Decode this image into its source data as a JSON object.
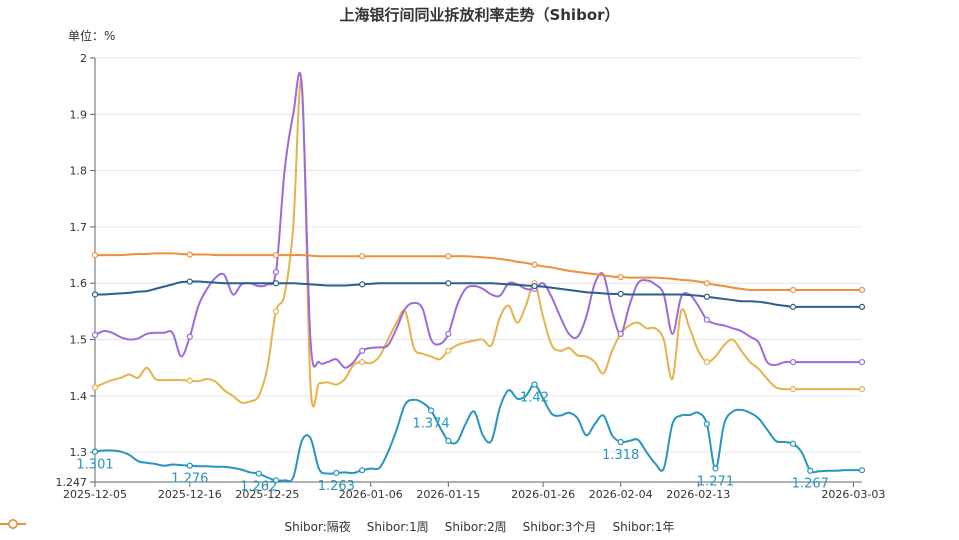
{
  "chart_data": {
    "type": "line",
    "title": "上海银行间同业拆放利率走势（Shibor）",
    "unit_label": "单位：%",
    "ylim": [
      1.247,
      2
    ],
    "y_ticks": [
      "2",
      "1.9",
      "1.8",
      "1.7",
      "1.6",
      "1.5",
      "1.4",
      "1.3",
      "1.247"
    ],
    "x_tick_labels": [
      "2025-12-05",
      "2025-12-16",
      "2025-12-25",
      "2026-01-06",
      "2026-01-15",
      "2026-01-26",
      "2026-02-04",
      "2026-02-13",
      "2026-03-03"
    ],
    "x": [
      "2025-12-05",
      "2025-12-06",
      "2025-12-07",
      "2025-12-08",
      "2025-12-09",
      "2025-12-10",
      "2025-12-11",
      "2025-12-12",
      "2025-12-13",
      "2025-12-14",
      "2025-12-15",
      "2025-12-16",
      "2025-12-17",
      "2025-12-18",
      "2025-12-19",
      "2025-12-20",
      "2025-12-21",
      "2025-12-22",
      "2025-12-23",
      "2025-12-24",
      "2025-12-25",
      "2025-12-26",
      "2025-12-27",
      "2025-12-28",
      "2025-12-29",
      "2025-12-30",
      "2025-12-31",
      "2026-01-01",
      "2026-01-02",
      "2026-01-03",
      "2026-01-04",
      "2026-01-05",
      "2026-01-06",
      "2026-01-07",
      "2026-01-08",
      "2026-01-09",
      "2026-01-10",
      "2026-01-11",
      "2026-01-12",
      "2026-01-13",
      "2026-01-14",
      "2026-01-15",
      "2026-01-16",
      "2026-01-17",
      "2026-01-18",
      "2026-01-19",
      "2026-01-20",
      "2026-01-21",
      "2026-01-22",
      "2026-01-23",
      "2026-01-24",
      "2026-01-25",
      "2026-01-26",
      "2026-01-27",
      "2026-01-28",
      "2026-01-29",
      "2026-01-30",
      "2026-01-31",
      "2026-02-01",
      "2026-02-02",
      "2026-02-03",
      "2026-02-04",
      "2026-02-05",
      "2026-02-06",
      "2026-02-07",
      "2026-02-08",
      "2026-02-09",
      "2026-02-10",
      "2026-02-11",
      "2026-02-12",
      "2026-02-13",
      "2026-02-14",
      "2026-02-15",
      "2026-02-16",
      "2026-02-17",
      "2026-02-18",
      "2026-02-19",
      "2026-02-20",
      "2026-02-21",
      "2026-02-22",
      "2026-02-23",
      "2026-02-24",
      "2026-02-25",
      "2026-02-26",
      "2026-02-27",
      "2026-02-28",
      "2026-03-01",
      "2026-03-02",
      "2026-03-03",
      "2026-03-04"
    ],
    "series": [
      {
        "name": "Shibor:隔夜",
        "color": "#2596be",
        "values": [
          1.301,
          1.303,
          1.303,
          1.301,
          1.295,
          1.284,
          1.281,
          1.279,
          1.276,
          1.278,
          1.277,
          1.276,
          1.275,
          1.275,
          1.274,
          1.274,
          1.272,
          1.269,
          1.264,
          1.262,
          1.255,
          1.25,
          1.25,
          1.255,
          1.32,
          1.325,
          1.27,
          1.262,
          1.263,
          1.264,
          1.263,
          1.268,
          1.271,
          1.272,
          1.3,
          1.34,
          1.385,
          1.393,
          1.388,
          1.374,
          1.345,
          1.32,
          1.318,
          1.35,
          1.372,
          1.33,
          1.32,
          1.38,
          1.41,
          1.395,
          1.4,
          1.42,
          1.395,
          1.368,
          1.365,
          1.37,
          1.36,
          1.33,
          1.35,
          1.365,
          1.33,
          1.318,
          1.32,
          1.322,
          1.3,
          1.28,
          1.271,
          1.35,
          1.365,
          1.366,
          1.37,
          1.35,
          1.271,
          1.35,
          1.372,
          1.375,
          1.37,
          1.36,
          1.34,
          1.32,
          1.318,
          1.315,
          1.3,
          1.267,
          1.266,
          1.267,
          1.267,
          1.268,
          1.268,
          1.268
        ]
      },
      {
        "name": "Shibor:1周",
        "color": "#e6b24b",
        "values": [
          1.415,
          1.422,
          1.428,
          1.432,
          1.438,
          1.432,
          1.45,
          1.43,
          1.428,
          1.428,
          1.428,
          1.427,
          1.426,
          1.43,
          1.425,
          1.41,
          1.4,
          1.388,
          1.39,
          1.4,
          1.45,
          1.55,
          1.58,
          1.7,
          1.955,
          1.42,
          1.422,
          1.424,
          1.42,
          1.43,
          1.455,
          1.46,
          1.458,
          1.47,
          1.5,
          1.53,
          1.55,
          1.485,
          1.475,
          1.47,
          1.465,
          1.48,
          1.49,
          1.495,
          1.498,
          1.5,
          1.49,
          1.54,
          1.56,
          1.53,
          1.56,
          1.6,
          1.54,
          1.49,
          1.48,
          1.485,
          1.472,
          1.47,
          1.46,
          1.44,
          1.48,
          1.51,
          1.525,
          1.53,
          1.52,
          1.52,
          1.5,
          1.43,
          1.55,
          1.52,
          1.48,
          1.46,
          1.47,
          1.49,
          1.5,
          1.48,
          1.46,
          1.448,
          1.43,
          1.415,
          1.412,
          1.412,
          1.412,
          1.412,
          1.412,
          1.412,
          1.412,
          1.412,
          1.412,
          1.412
        ]
      },
      {
        "name": "Shibor:2周",
        "color": "#9b6bdc",
        "values": [
          1.508,
          1.515,
          1.512,
          1.504,
          1.5,
          1.502,
          1.51,
          1.512,
          1.512,
          1.512,
          1.47,
          1.505,
          1.56,
          1.59,
          1.61,
          1.615,
          1.58,
          1.598,
          1.6,
          1.595,
          1.598,
          1.62,
          1.8,
          1.9,
          1.95,
          1.5,
          1.46,
          1.46,
          1.465,
          1.45,
          1.46,
          1.48,
          1.485,
          1.486,
          1.49,
          1.52,
          1.555,
          1.565,
          1.555,
          1.5,
          1.492,
          1.51,
          1.56,
          1.59,
          1.595,
          1.59,
          1.58,
          1.578,
          1.6,
          1.598,
          1.59,
          1.59,
          1.6,
          1.575,
          1.54,
          1.51,
          1.505,
          1.54,
          1.6,
          1.615,
          1.55,
          1.51,
          1.56,
          1.6,
          1.605,
          1.598,
          1.58,
          1.51,
          1.575,
          1.58,
          1.56,
          1.535,
          1.528,
          1.525,
          1.52,
          1.515,
          1.505,
          1.495,
          1.46,
          1.455,
          1.46,
          1.46,
          1.46,
          1.46,
          1.46,
          1.46,
          1.46,
          1.46,
          1.46,
          1.46
        ]
      },
      {
        "name": "Shibor:3个月",
        "color": "#2b5f8c",
        "values": [
          1.58,
          1.58,
          1.581,
          1.582,
          1.583,
          1.585,
          1.586,
          1.59,
          1.594,
          1.598,
          1.602,
          1.603,
          1.603,
          1.602,
          1.601,
          1.6,
          1.6,
          1.6,
          1.6,
          1.6,
          1.6,
          1.6,
          1.6,
          1.6,
          1.599,
          1.598,
          1.597,
          1.596,
          1.596,
          1.596,
          1.597,
          1.598,
          1.599,
          1.6,
          1.6,
          1.6,
          1.6,
          1.6,
          1.6,
          1.6,
          1.6,
          1.6,
          1.6,
          1.6,
          1.6,
          1.6,
          1.6,
          1.599,
          1.598,
          1.597,
          1.596,
          1.595,
          1.594,
          1.592,
          1.59,
          1.588,
          1.586,
          1.584,
          1.583,
          1.582,
          1.581,
          1.581,
          1.58,
          1.58,
          1.58,
          1.58,
          1.58,
          1.58,
          1.58,
          1.579,
          1.578,
          1.576,
          1.574,
          1.572,
          1.57,
          1.568,
          1.568,
          1.567,
          1.565,
          1.562,
          1.56,
          1.558,
          1.558,
          1.558,
          1.558,
          1.558,
          1.558,
          1.558,
          1.558,
          1.558
        ]
      },
      {
        "name": "Shibor:1年",
        "color": "#ef8f3c",
        "values": [
          1.65,
          1.65,
          1.65,
          1.65,
          1.651,
          1.652,
          1.652,
          1.653,
          1.653,
          1.653,
          1.652,
          1.651,
          1.651,
          1.651,
          1.65,
          1.65,
          1.65,
          1.65,
          1.65,
          1.65,
          1.65,
          1.65,
          1.65,
          1.65,
          1.65,
          1.649,
          1.648,
          1.648,
          1.648,
          1.648,
          1.648,
          1.648,
          1.648,
          1.648,
          1.648,
          1.648,
          1.648,
          1.648,
          1.648,
          1.648,
          1.648,
          1.648,
          1.648,
          1.648,
          1.647,
          1.646,
          1.645,
          1.643,
          1.641,
          1.638,
          1.636,
          1.633,
          1.63,
          1.628,
          1.625,
          1.622,
          1.62,
          1.618,
          1.616,
          1.614,
          1.612,
          1.611,
          1.61,
          1.61,
          1.61,
          1.61,
          1.609,
          1.608,
          1.606,
          1.605,
          1.603,
          1.6,
          1.597,
          1.595,
          1.592,
          1.59,
          1.588,
          1.588,
          1.588,
          1.588,
          1.588,
          1.588,
          1.588,
          1.588,
          1.588,
          1.588,
          1.588,
          1.588,
          1.588,
          1.588
        ]
      }
    ],
    "annotations": [
      {
        "series": 0,
        "index": 0,
        "text": "1.301"
      },
      {
        "series": 0,
        "index": 11,
        "text": "1.276"
      },
      {
        "series": 0,
        "index": 19,
        "text": "1.262"
      },
      {
        "series": 0,
        "index": 28,
        "text": "1.263"
      },
      {
        "series": 0,
        "index": 39,
        "text": "1.374"
      },
      {
        "series": 0,
        "index": 51,
        "text": "1.42"
      },
      {
        "series": 0,
        "index": 61,
        "text": "1.318"
      },
      {
        "series": 0,
        "index": 72,
        "text": "1.271"
      },
      {
        "series": 0,
        "index": 83,
        "text": "1.267"
      }
    ],
    "grid": true,
    "legend_position": "bottom"
  }
}
